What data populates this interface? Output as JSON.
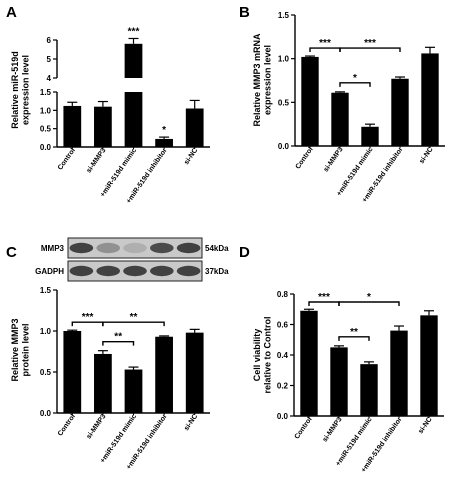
{
  "chart_data": [
    {
      "panel": "A",
      "type": "bar",
      "categories": [
        "Control",
        "si-MMP3",
        "+miR-519d mimic",
        "+miR-519d inhibitor",
        "si-NC"
      ],
      "values": [
        1.12,
        1.1,
        5.8,
        0.22,
        1.05
      ],
      "errors": [
        0.1,
        0.14,
        0.28,
        0.05,
        0.22
      ],
      "ylabel": "Relative miR-519d expression level",
      "axis_break": {
        "lower": [
          0,
          1.5
        ],
        "upper": [
          4,
          6
        ]
      },
      "yticks": [
        "0.0",
        "0.5",
        "1.0",
        "1.5",
        "4",
        "5",
        "6"
      ],
      "significance": [
        {
          "bar": 2,
          "label": "***"
        },
        {
          "bar": 3,
          "label": "*"
        }
      ]
    },
    {
      "panel": "B",
      "type": "bar",
      "categories": [
        "Control",
        "si-MMP3",
        "+miR-519d mimic",
        "+miR-519d inhibitor",
        "si-NC"
      ],
      "values": [
        1.02,
        0.61,
        0.22,
        0.77,
        1.06
      ],
      "errors": [
        0.01,
        0.01,
        0.03,
        0.02,
        0.07
      ],
      "ylabel": "Relative MMP3 mRNA expression level",
      "ylim": [
        0,
        1.5
      ],
      "yticks": [
        "0.0",
        "0.5",
        "1.0",
        "1.5"
      ],
      "significance": [
        {
          "from": 0,
          "to": 1,
          "label": "***"
        },
        {
          "from": 1,
          "to": 3,
          "label": "***"
        },
        {
          "from": 1,
          "to": 2,
          "label": "*"
        }
      ]
    },
    {
      "panel": "C",
      "type": "bar",
      "categories": [
        "Control",
        "si-MMP3",
        "+miR-519d mimic",
        "+miR-519d inhibitor",
        "si-NC"
      ],
      "values": [
        1.0,
        0.72,
        0.53,
        0.93,
        0.98
      ],
      "errors": [
        0.01,
        0.04,
        0.03,
        0.01,
        0.04
      ],
      "ylabel": "Relative MMP3 protein level",
      "ylim": [
        0,
        1.5
      ],
      "yticks": [
        "0.0",
        "0.5",
        "1.0",
        "1.5"
      ],
      "significance": [
        {
          "from": 0,
          "to": 1,
          "label": "***"
        },
        {
          "from": 1,
          "to": 3,
          "label": "**"
        },
        {
          "from": 1,
          "to": 2,
          "label": "**"
        }
      ],
      "blot": {
        "rows": [
          {
            "name": "MMP3",
            "size": "54kDa",
            "intensities": [
              0.85,
              0.45,
              0.3,
              0.8,
              0.85
            ]
          },
          {
            "name": "GADPH",
            "size": "37kDa",
            "intensities": [
              0.85,
              0.85,
              0.85,
              0.85,
              0.85
            ]
          }
        ]
      }
    },
    {
      "panel": "D",
      "type": "bar",
      "categories": [
        "Control",
        "si-MMP3",
        "+miR-519d mimic",
        "+miR-519d inhibitor",
        "si-NC"
      ],
      "values": [
        0.69,
        0.45,
        0.34,
        0.56,
        0.66
      ],
      "errors": [
        0.01,
        0.01,
        0.015,
        0.03,
        0.03
      ],
      "ylabel": "Cell viability relative to Control",
      "ylim": [
        0,
        0.8
      ],
      "yticks": [
        "0.0",
        "0.2",
        "0.4",
        "0.6",
        "0.8"
      ],
      "significance": [
        {
          "from": 0,
          "to": 1,
          "label": "***"
        },
        {
          "from": 1,
          "to": 3,
          "label": "*"
        },
        {
          "from": 1,
          "to": 2,
          "label": "**"
        }
      ]
    }
  ]
}
